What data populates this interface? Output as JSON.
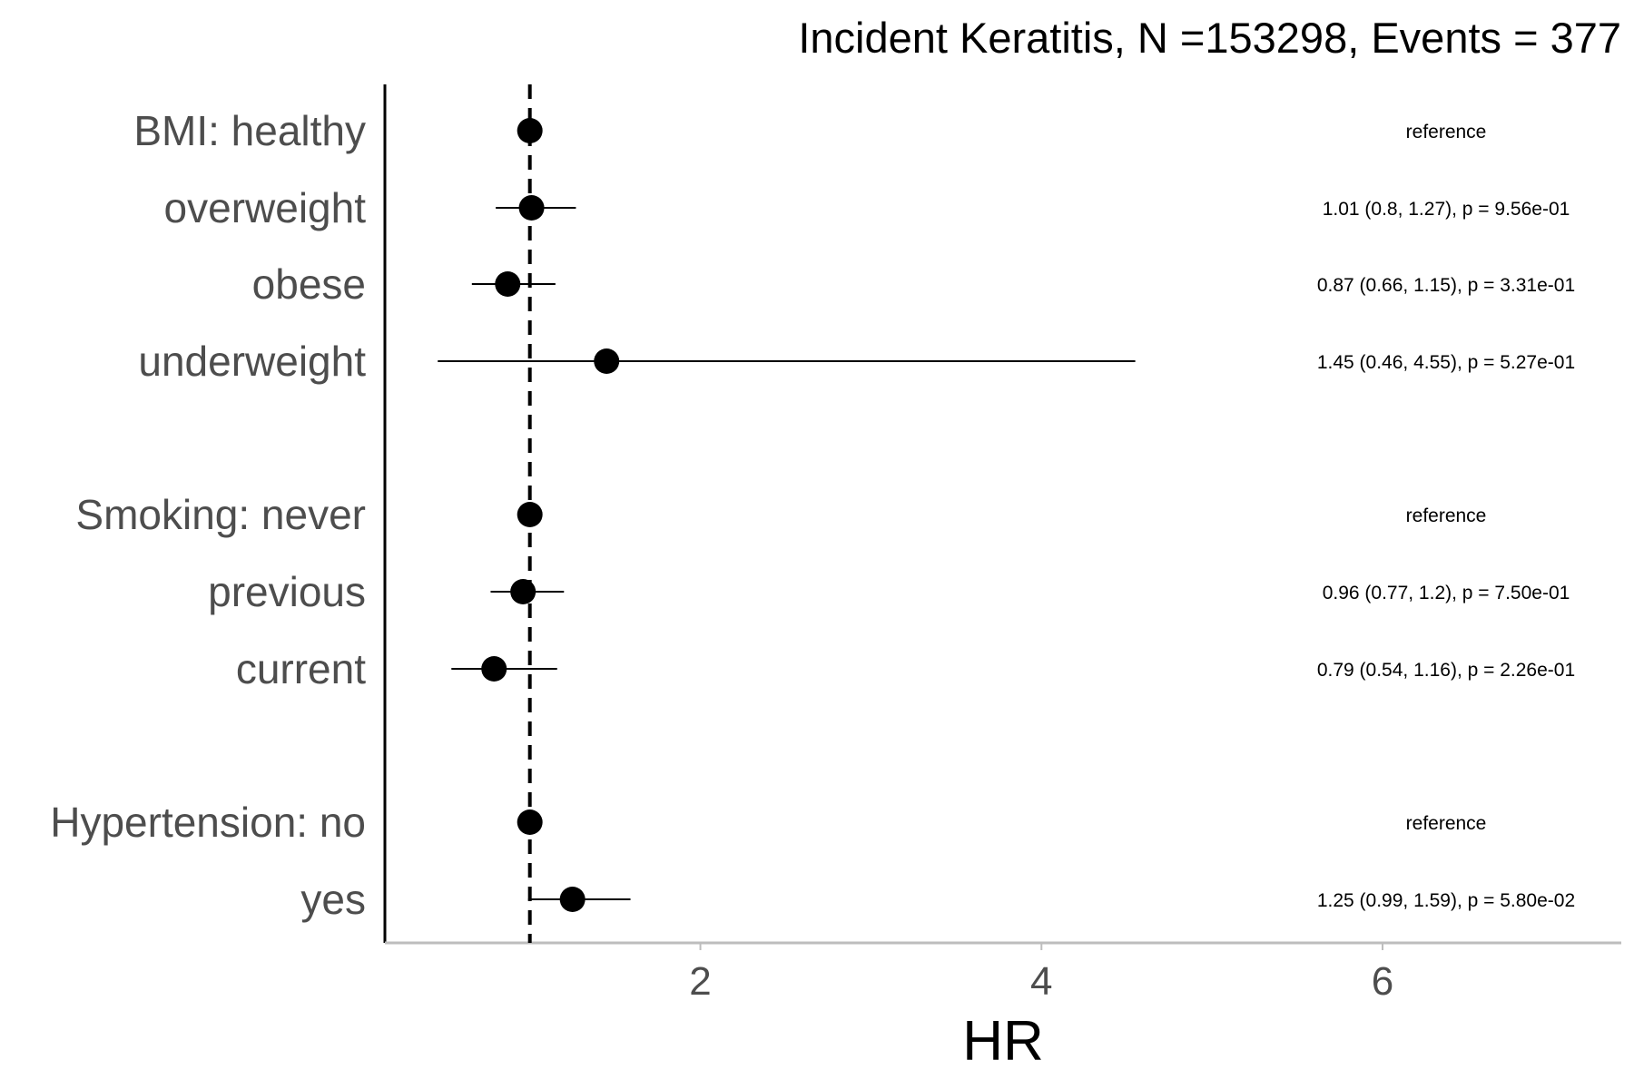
{
  "chart_data": {
    "type": "scatter",
    "subtype": "forest-plot",
    "title": "Incident Keratitis, N =153298, Events = 377",
    "xlabel": "HR",
    "xlim": [
      0.15,
      7.4
    ],
    "xticks": [
      2,
      4,
      6
    ],
    "xtick_labels": [
      "2",
      "4",
      "6"
    ],
    "reference_line": 1,
    "grid": false,
    "rows": [
      {
        "label": "BMI: healthy",
        "hr": 1.0,
        "lower": null,
        "upper": null,
        "annotation": "reference"
      },
      {
        "label": "overweight",
        "hr": 1.01,
        "lower": 0.8,
        "upper": 1.27,
        "annotation": "1.01 (0.8, 1.27), p = 9.56e-01"
      },
      {
        "label": "obese",
        "hr": 0.87,
        "lower": 0.66,
        "upper": 1.15,
        "annotation": "0.87 (0.66, 1.15), p = 3.31e-01"
      },
      {
        "label": "underweight",
        "hr": 1.45,
        "lower": 0.46,
        "upper": 4.55,
        "annotation": "1.45 (0.46, 4.55), p = 5.27e-01"
      },
      {
        "label": "Smoking: never",
        "hr": 1.0,
        "lower": null,
        "upper": null,
        "annotation": "reference"
      },
      {
        "label": "previous",
        "hr": 0.96,
        "lower": 0.77,
        "upper": 1.2,
        "annotation": "0.96 (0.77, 1.2), p = 7.50e-01"
      },
      {
        "label": "current",
        "hr": 0.79,
        "lower": 0.54,
        "upper": 1.16,
        "annotation": "0.79 (0.54, 1.16), p = 2.26e-01"
      },
      {
        "label": "Hypertension: no",
        "hr": 1.0,
        "lower": null,
        "upper": null,
        "annotation": "reference"
      },
      {
        "label": "yes",
        "hr": 1.25,
        "lower": 0.99,
        "upper": 1.59,
        "annotation": "1.25 (0.99, 1.59), p = 5.80e-02"
      }
    ]
  }
}
